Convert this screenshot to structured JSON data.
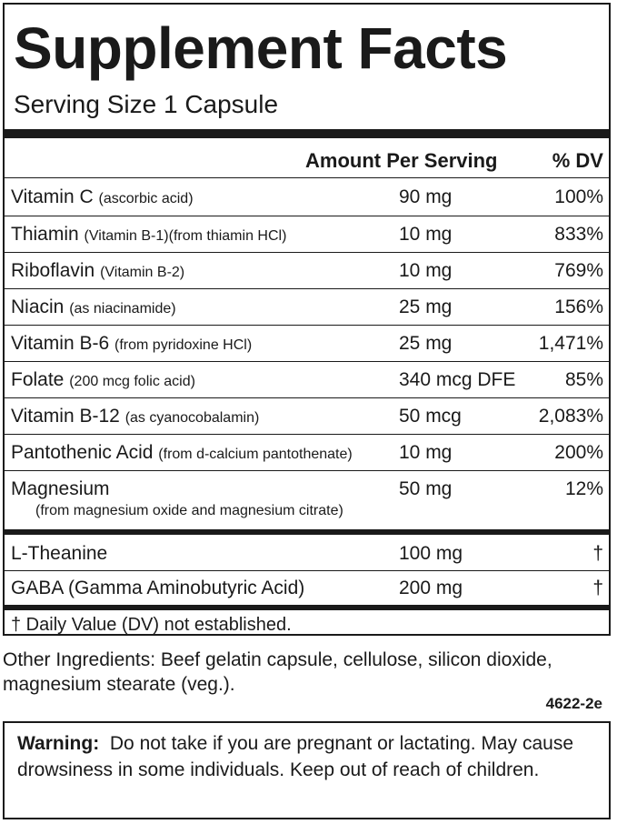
{
  "header": {
    "title": "Supplement Facts",
    "serving_size": "Serving Size 1 Capsule"
  },
  "columns": {
    "amount": "Amount Per Serving",
    "dv": "% DV"
  },
  "nutrients": [
    {
      "name": "Vitamin C",
      "sub": "(ascorbic acid)",
      "amount": "90 mg",
      "dv": "100%"
    },
    {
      "name": "Thiamin",
      "sub": "(Vitamin B-1)(from thiamin HCl)",
      "amount": "10 mg",
      "dv": "833%"
    },
    {
      "name": "Riboflavin",
      "sub": "(Vitamin B-2)",
      "amount": "10 mg",
      "dv": "769%"
    },
    {
      "name": "Niacin",
      "sub": "(as niacinamide)",
      "amount": "25 mg",
      "dv": "156%"
    },
    {
      "name": "Vitamin B-6",
      "sub": "(from pyridoxine HCl)",
      "amount": "25 mg",
      "dv": "1,471%"
    },
    {
      "name": "Folate",
      "sub": "(200 mcg folic acid)",
      "amount": "340 mcg DFE",
      "dv": "85%"
    },
    {
      "name": "Vitamin B-12",
      "sub": "(as cyanocobalamin)",
      "amount": "50 mcg",
      "dv": "2,083%"
    },
    {
      "name": "Pantothenic Acid",
      "sub": "(from d-calcium  pantothenate)",
      "amount": "10 mg",
      "dv": "200%"
    },
    {
      "name": "Magnesium",
      "sub": "(from magnesium oxide and  magnesium citrate)",
      "amount": "50 mg",
      "dv": "12%"
    }
  ],
  "other_nutrients": [
    {
      "name": "L-Theanine",
      "amount": "100 mg",
      "dv": "†"
    },
    {
      "name": "GABA (Gamma Aminobutyric Acid)",
      "amount": "200 mg",
      "dv": "†"
    }
  ],
  "footnote": "† Daily Value (DV) not established.",
  "other_ingredients": "Other Ingredients:  Beef gelatin capsule, cellulose, silicon dioxide, magnesium stearate (veg.).",
  "product_code": "4622-2e",
  "warning": {
    "label": "Warning:",
    "text": "Do not take if you are pregnant or lactating. May cause drowsiness in some individuals.  Keep out of reach of children."
  }
}
